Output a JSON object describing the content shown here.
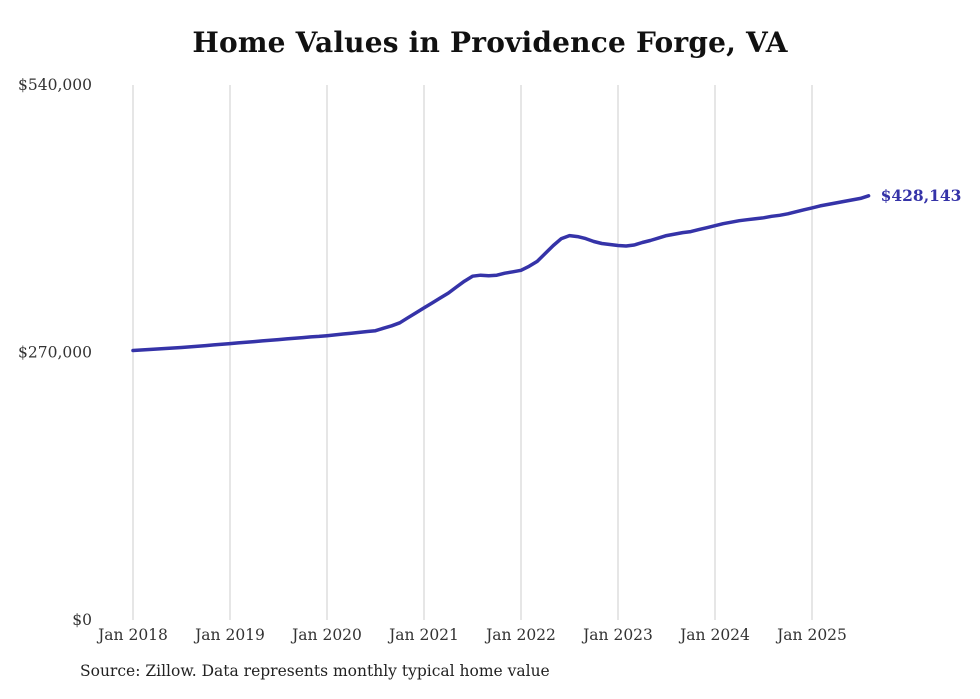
{
  "title": "Home Values in Providence Forge, VA",
  "source_note": "Source: Zillow. Data represents monthly typical home value",
  "colors": {
    "line": "#3533a8",
    "gridline": "#cccccc",
    "tick_label": "#333333",
    "title": "#111111",
    "background": "#ffffff"
  },
  "chart_data": {
    "type": "line",
    "title": "Home Values in Providence Forge, VA",
    "xlabel": "",
    "ylabel": "",
    "ylim": [
      0,
      540000
    ],
    "grid": "vertical-only",
    "legend": "none",
    "y_ticks": [
      {
        "value": 540000,
        "label": "$540,000"
      },
      {
        "value": 270000,
        "label": "$270,000"
      },
      {
        "value": 0,
        "label": "$0"
      }
    ],
    "x_ticks": [
      {
        "month_index": 0,
        "label": "Jan 2018"
      },
      {
        "month_index": 12,
        "label": "Jan 2019"
      },
      {
        "month_index": 24,
        "label": "Jan 2020"
      },
      {
        "month_index": 36,
        "label": "Jan 2021"
      },
      {
        "month_index": 48,
        "label": "Jan 2022"
      },
      {
        "month_index": 60,
        "label": "Jan 2023"
      },
      {
        "month_index": 72,
        "label": "Jan 2024"
      },
      {
        "month_index": 84,
        "label": "Jan 2025"
      }
    ],
    "annotation": {
      "text": "$428,143",
      "position": "end-of-line"
    },
    "series": [
      {
        "name": "Monthly typical home value",
        "start_month": "Jan 2018",
        "frequency": "monthly",
        "values": [
          272000,
          272500,
          273000,
          273500,
          274000,
          274500,
          275000,
          275700,
          276300,
          277000,
          277700,
          278300,
          279000,
          279700,
          280300,
          281000,
          281700,
          282300,
          283000,
          283700,
          284300,
          285000,
          285700,
          286300,
          287000,
          287800,
          288700,
          289500,
          290300,
          291200,
          292000,
          294500,
          297000,
          300000,
          305000,
          310000,
          315000,
          320000,
          325000,
          330000,
          336000,
          342000,
          347000,
          348000,
          347500,
          348000,
          350000,
          351500,
          353000,
          357000,
          362000,
          370000,
          378000,
          385000,
          388000,
          387000,
          385000,
          382000,
          380000,
          379000,
          378000,
          377500,
          378500,
          381000,
          383000,
          385500,
          388000,
          389500,
          391000,
          392000,
          394000,
          396000,
          398000,
          400000,
          401500,
          403000,
          404000,
          405000,
          406000,
          407500,
          408500,
          410000,
          412000,
          414000,
          416000,
          418000,
          419500,
          421000,
          422500,
          424000,
          425500,
          428143
        ],
        "final_value_label": "$428,143"
      }
    ]
  }
}
